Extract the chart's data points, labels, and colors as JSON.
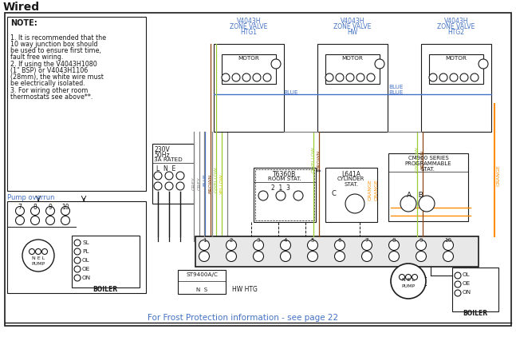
{
  "title": "Wired",
  "bg_color": "#ffffff",
  "note_lines": [
    "NOTE:",
    "1. It is recommended that the",
    "10 way junction box should",
    "be used to ensure first time,",
    "fault free wiring.",
    " ",
    "2. If using the V4043H1080",
    "(1\" BSP) or V4043H1106",
    "(28mm), the white wire must",
    "be electrically isolated.",
    " ",
    "3. For wiring other room",
    "thermostats see above**."
  ],
  "pump_overrun_label": "Pump overrun",
  "valve_labels": [
    "V4043H\nZONE VALVE\nHTG1",
    "V4043H\nZONE VALVE\nHW",
    "V4043H\nZONE VALVE\nHTG2"
  ],
  "bottom_text": "For Frost Protection information - see page 22",
  "grey": "#808080",
  "blue": "#4472c4",
  "brown": "#8B4513",
  "orange": "#FF8C00",
  "gyellow": "#9ACD32",
  "black": "#1a1a1a",
  "white": "#ffffff",
  "lightgrey": "#e8e8e8"
}
